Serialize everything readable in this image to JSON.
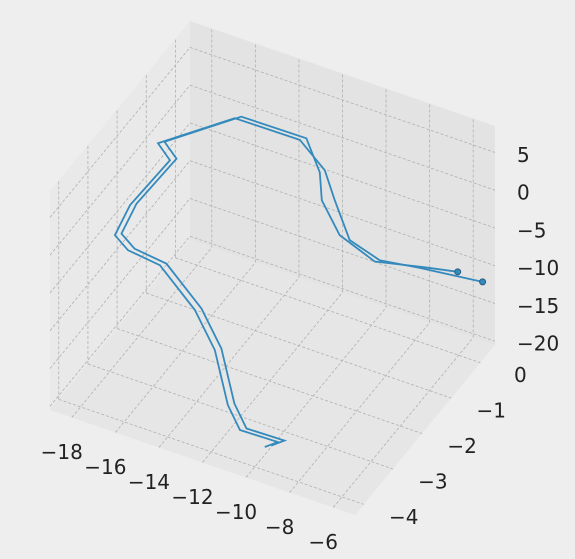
{
  "chart_data": {
    "type": "line3d",
    "xlim": [
      -19,
      -5
    ],
    "ylim": [
      -4.3,
      0.5
    ],
    "zlim": [
      -20.5,
      8.5
    ],
    "xticks": [
      {
        "value": -18,
        "label": "−18"
      },
      {
        "value": -16,
        "label": "−16"
      },
      {
        "value": -14,
        "label": "−14"
      },
      {
        "value": -12,
        "label": "−12"
      },
      {
        "value": -10,
        "label": "−10"
      },
      {
        "value": -8,
        "label": "−8"
      },
      {
        "value": -6,
        "label": "−6"
      }
    ],
    "yticks": [
      {
        "value": -4,
        "label": "−4"
      },
      {
        "value": -3,
        "label": "−3"
      },
      {
        "value": -2,
        "label": "−2"
      },
      {
        "value": -1,
        "label": "−1"
      },
      0
    ],
    "zticks": [
      {
        "value": -20,
        "label": "−20"
      },
      {
        "value": -15,
        "label": "−15"
      },
      {
        "value": -10,
        "label": "−10"
      },
      {
        "value": -5,
        "label": "−5"
      },
      0,
      5
    ],
    "grid": true,
    "end_markers": true,
    "series": [
      {
        "color": "#348abd",
        "x": [
          -9.81,
          -9.21,
          -10.95,
          -11.64,
          -12.37,
          -13.42,
          -15.16,
          -16.76,
          -17.36,
          -16.8,
          -16.17,
          -16.99,
          -14.94,
          -11.95,
          -10.67,
          -10.08,
          -9.26,
          -8.15,
          -6.85,
          -4.9
        ],
        "y": [
          -3.8,
          -3.8,
          -3.8,
          -3.7,
          -3.6,
          -3.5,
          -3.4,
          -3.3,
          -3.3,
          -3.2,
          -2.3,
          -2.1,
          -1.0,
          -1.0,
          -1.1,
          -1.2,
          -1.3,
          -1.1,
          -0.7,
          0.0
        ],
        "z": [
          -18.62,
          -17.37,
          -17.5,
          -15.34,
          -9.27,
          -5.47,
          -1.73,
          -1.8,
          -0.41,
          3.65,
          6.0,
          6.5,
          6.7,
          6.8,
          4.5,
          1.6,
          -2.4,
          -4.9,
          -6.5,
          -9.7
        ]
      },
      {
        "color": "#348abd",
        "x": [
          -9.51,
          -8.91,
          -10.65,
          -11.34,
          -12.07,
          -13.12,
          -14.86,
          -16.46,
          -17.06,
          -16.5,
          -15.87,
          -16.69,
          -14.64,
          -11.65,
          -10.9,
          -10.54,
          -9.72,
          -8.51,
          -7.02,
          -5.91
        ],
        "y": [
          -3.8,
          -3.8,
          -3.8,
          -3.7,
          -3.6,
          -3.5,
          -3.4,
          -3.3,
          -3.3,
          -3.2,
          -2.3,
          -2.1,
          -1.0,
          -1.0,
          -1.1,
          -1.3,
          -1.3,
          -1.0,
          -0.4,
          -0.1
        ],
        "z": [
          -18.12,
          -16.87,
          -17.0,
          -14.84,
          -8.77,
          -4.97,
          -1.23,
          -1.3,
          0.09,
          4.15,
          6.5,
          7.0,
          7.2,
          7.3,
          4.0,
          1.6,
          -2.2,
          -5.9,
          -8.0,
          -8.9
        ]
      }
    ]
  }
}
